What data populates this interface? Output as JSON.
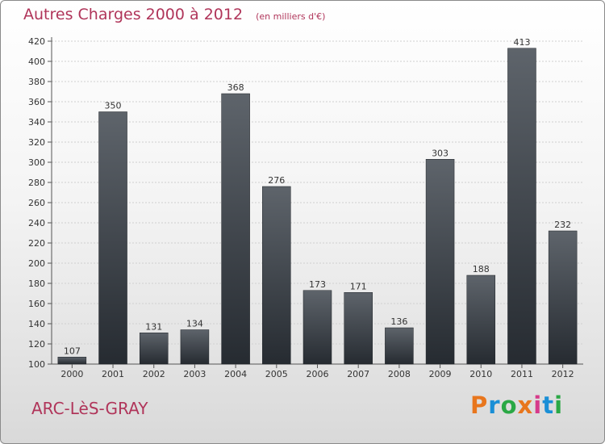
{
  "chart_data": {
    "type": "bar",
    "title": "Autres Charges 2000 à 2012",
    "subtitle": "(en milliers d'€)",
    "categories": [
      "2000",
      "2001",
      "2002",
      "2003",
      "2004",
      "2005",
      "2006",
      "2007",
      "2008",
      "2009",
      "2010",
      "2011",
      "2012"
    ],
    "values": [
      107,
      350,
      131,
      134,
      368,
      276,
      173,
      171,
      136,
      303,
      188,
      413,
      232
    ],
    "ylim": [
      100,
      420
    ],
    "ytick_step": 20,
    "grid": true,
    "bar_color": "#3d434a"
  },
  "footer": {
    "commune": "ARC-LèS-GRAY",
    "logo_text": "Proxiti",
    "logo_colors": [
      "#e8761d",
      "#1a8fd6",
      "#2aa845",
      "#e8761d",
      "#d63a8a",
      "#1a8fd6",
      "#2aa845"
    ]
  }
}
